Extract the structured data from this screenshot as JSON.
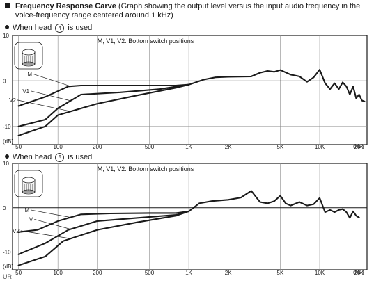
{
  "header": {
    "title_bold": "Frequency Response Carve",
    "title_rest": "(Graph showing the output level versus the input audio frequency in the",
    "title_line2": "voice-frequency range centered around 1 kHz)"
  },
  "footer": {
    "text": "UR"
  },
  "colors": {
    "ink": "#1a1a1a",
    "grid": "#8a8a8a",
    "paper": "#ffffff"
  },
  "chart_data": [
    {
      "type": "line",
      "caption_prefix": "When head",
      "head_number": "4",
      "caption_suffix": "is used",
      "title": "M, V1, V2: Bottom switch positions",
      "x_scale": "log",
      "x_unit": "(Hz)",
      "xlim": [
        45,
        23000
      ],
      "ylim": [
        -14,
        10
      ],
      "y_unit": "(dB)",
      "x_ticks": [
        {
          "value": 50,
          "label": "50"
        },
        {
          "value": 100,
          "label": "100"
        },
        {
          "value": 200,
          "label": "200"
        },
        {
          "value": 500,
          "label": "500"
        },
        {
          "value": 1000,
          "label": "1K"
        },
        {
          "value": 2000,
          "label": "2K"
        },
        {
          "value": 5000,
          "label": "5K"
        },
        {
          "value": 10000,
          "label": "10K"
        },
        {
          "value": 20000,
          "label": "20K"
        }
      ],
      "y_ticks": [
        {
          "value": 10,
          "label": "10"
        },
        {
          "value": 0,
          "label": "0"
        },
        {
          "value": -10,
          "label": "-10"
        }
      ],
      "grid": true,
      "series": [
        {
          "name": "M",
          "x": [
            50,
            80,
            120,
            150,
            250,
            500,
            800,
            1000
          ],
          "y": [
            -5.5,
            -3.5,
            -1.2,
            -1.0,
            -1.0,
            -1.0,
            -1.0,
            -0.8
          ]
        },
        {
          "name": "V1",
          "x": [
            50,
            80,
            100,
            150,
            300,
            600,
            1000
          ],
          "y": [
            -10,
            -8.5,
            -6,
            -3,
            -2.5,
            -1.8,
            -0.8
          ]
        },
        {
          "name": "V2",
          "x": [
            50,
            80,
            100,
            200,
            400,
            800,
            1000
          ],
          "y": [
            -12,
            -10,
            -7.5,
            -5,
            -3.2,
            -1.5,
            -0.8
          ]
        },
        {
          "name": "",
          "x": [
            1000,
            1300,
            1600,
            2000,
            3000,
            3500,
            4000,
            4500,
            5000,
            6000,
            7000,
            8000,
            9000,
            10000,
            11000,
            12000,
            13000,
            14000,
            15000,
            16000,
            17000,
            18000,
            19000,
            20000,
            21000,
            22000
          ],
          "y": [
            -0.8,
            0.3,
            0.8,
            0.9,
            1.0,
            1.8,
            2.2,
            2.0,
            2.4,
            1.4,
            1.0,
            -0.2,
            0.8,
            2.5,
            -0.5,
            -1.8,
            -0.5,
            -1.8,
            -0.3,
            -1.2,
            -3.0,
            -1.2,
            -3.8,
            -3.0,
            -4.3,
            -4.5
          ]
        }
      ],
      "curve_labels": [
        {
          "text": "M",
          "x": 65,
          "y": 1.5
        },
        {
          "text": "V1",
          "x": 62,
          "y": -2.2
        },
        {
          "text": "V2",
          "x": 49,
          "y": -4.2
        }
      ]
    },
    {
      "type": "line",
      "caption_prefix": "When head",
      "head_number": "5",
      "caption_suffix": "is used",
      "title": "M, V1, V2: Bottom switch positions",
      "x_scale": "log",
      "x_unit": "(Hz)",
      "xlim": [
        45,
        23000
      ],
      "ylim": [
        -14,
        10
      ],
      "y_unit": "(dB)",
      "x_ticks": [
        {
          "value": 50,
          "label": "50"
        },
        {
          "value": 100,
          "label": "100"
        },
        {
          "value": 200,
          "label": "200"
        },
        {
          "value": 500,
          "label": "500"
        },
        {
          "value": 1000,
          "label": "1K"
        },
        {
          "value": 2000,
          "label": "2K"
        },
        {
          "value": 5000,
          "label": "5K"
        },
        {
          "value": 10000,
          "label": "10K"
        },
        {
          "value": 20000,
          "label": "20K"
        }
      ],
      "y_ticks": [
        {
          "value": 10,
          "label": "10"
        },
        {
          "value": 0,
          "label": "0"
        },
        {
          "value": -10,
          "label": "-10"
        }
      ],
      "grid": true,
      "series": [
        {
          "name": "M",
          "x": [
            50,
            70,
            100,
            150,
            250,
            500,
            800,
            1000
          ],
          "y": [
            -5.5,
            -5.0,
            -3.0,
            -1.5,
            -1.3,
            -1.2,
            -1.2,
            -0.8
          ]
        },
        {
          "name": "V",
          "x": [
            50,
            80,
            120,
            200,
            400,
            800,
            1000
          ],
          "y": [
            -10.5,
            -8.0,
            -5.0,
            -3.0,
            -2.3,
            -1.6,
            -0.8
          ]
        },
        {
          "name": "V2",
          "x": [
            50,
            80,
            110,
            200,
            400,
            800,
            1000
          ],
          "y": [
            -13,
            -11,
            -7.5,
            -5.0,
            -3.3,
            -1.8,
            -0.8
          ]
        },
        {
          "name": "",
          "x": [
            1000,
            1200,
            1500,
            2000,
            2500,
            3000,
            3500,
            4000,
            4500,
            5000,
            5500,
            6000,
            7000,
            8000,
            9000,
            10000,
            11000,
            12000,
            13000,
            14000,
            15000,
            16000,
            17000,
            18000,
            19000,
            20000
          ],
          "y": [
            -0.8,
            1.0,
            1.5,
            1.8,
            2.3,
            3.8,
            1.3,
            1.0,
            1.5,
            2.7,
            1.0,
            0.5,
            1.3,
            0.5,
            0.8,
            2.2,
            -1.0,
            -0.5,
            -1.0,
            -0.5,
            -0.3,
            -1.0,
            -2.3,
            -0.8,
            -1.8,
            -2.2
          ]
        }
      ],
      "curve_labels": [
        {
          "text": "M",
          "x": 62,
          "y": -0.5
        },
        {
          "text": "V",
          "x": 66,
          "y": -2.6
        },
        {
          "text": "V2",
          "x": 52,
          "y": -5.2
        }
      ]
    }
  ]
}
